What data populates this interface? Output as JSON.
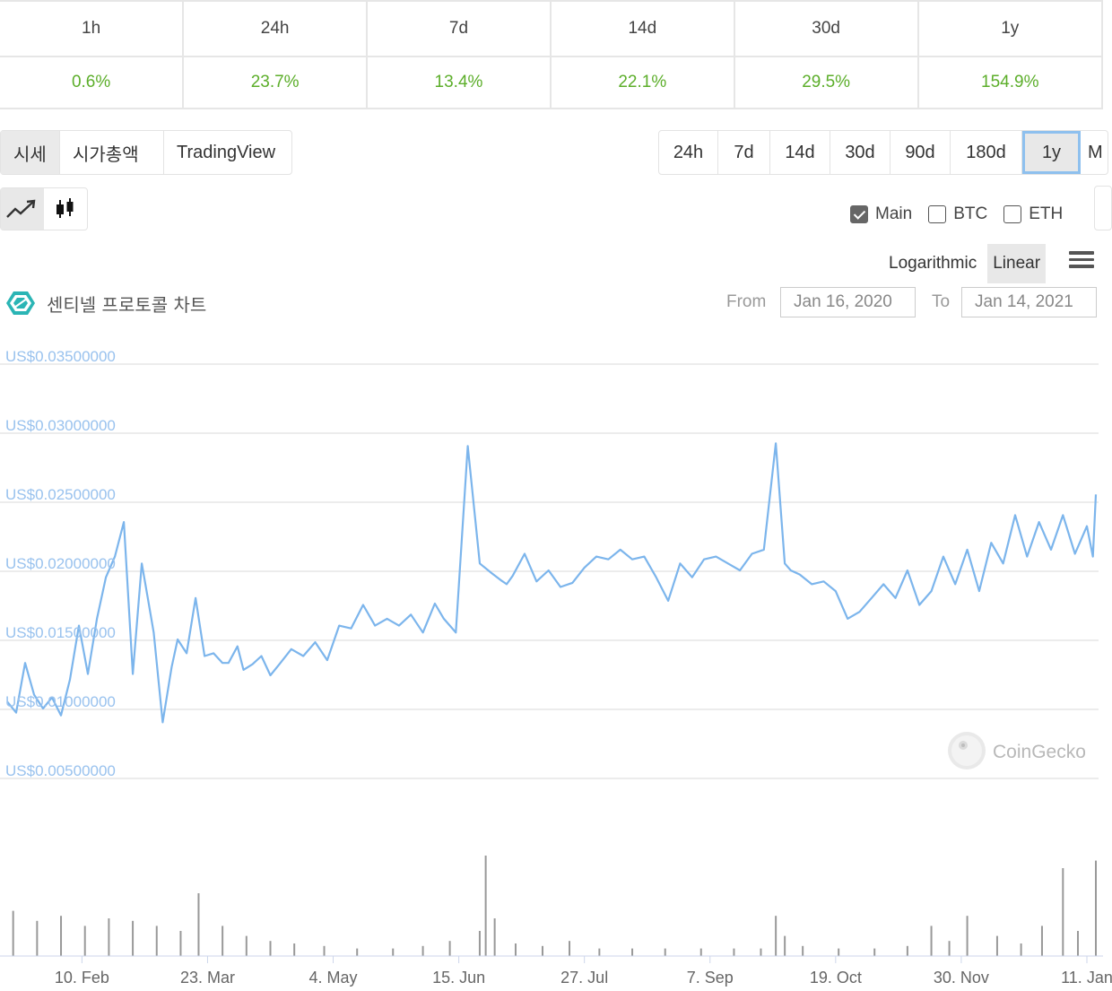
{
  "performance": {
    "periods": [
      "1h",
      "24h",
      "7d",
      "14d",
      "30d",
      "1y"
    ],
    "changes": [
      "0.6%",
      "23.7%",
      "13.4%",
      "22.1%",
      "29.5%",
      "154.9%"
    ]
  },
  "chart_tabs": [
    "시세",
    "시가총액",
    "TradingView"
  ],
  "active_chart_tab": "시세",
  "time_ranges": [
    "24h",
    "7d",
    "14d",
    "30d",
    "90d",
    "180d",
    "1y",
    "M"
  ],
  "active_range": "1y",
  "compare": {
    "main": "Main",
    "btc": "BTC",
    "eth": "ETH"
  },
  "compare_checked": {
    "main": true,
    "btc": false,
    "eth": false
  },
  "scale": {
    "log": "Logarithmic",
    "linear": "Linear",
    "active": "Linear"
  },
  "icons": {
    "line": "line-chart-icon",
    "candle": "candlestick-icon",
    "menu": "menu-icon",
    "coin": "sentinel-protocol-logo-icon",
    "watermark": "coingecko-logo-icon"
  },
  "header": {
    "title": "센티넬 프로토콜 차트",
    "from_label": "From",
    "from_value": "Jan 16, 2020",
    "to_label": "To",
    "to_value": "Jan 14, 2021"
  },
  "watermark": "CoinGecko",
  "colors": {
    "line": "#7cb5ec",
    "up": "#5cae2a",
    "axis_label": "#99c2ee",
    "grid": "#e6e6e6",
    "volume": "#999999"
  },
  "chart_data": {
    "type": "line",
    "title": "센티넬 프로토콜 차트",
    "xlabel": "",
    "ylabel": "",
    "ylim": [
      0.005,
      0.035
    ],
    "y_ticks": [
      {
        "value": 0.035,
        "label": "US$0.03500000"
      },
      {
        "value": 0.03,
        "label": "US$0.03000000"
      },
      {
        "value": 0.025,
        "label": "US$0.02500000"
      },
      {
        "value": 0.02,
        "label": "US$0.02000000"
      },
      {
        "value": 0.015,
        "label": "US$0.01500000"
      },
      {
        "value": 0.01,
        "label": "US$0.01000000"
      },
      {
        "value": 0.005,
        "label": "US$0.00500000"
      }
    ],
    "x_ticks": [
      {
        "date": "2020-02-10",
        "label": "10. Feb"
      },
      {
        "date": "2020-03-23",
        "label": "23. Mar"
      },
      {
        "date": "2020-05-04",
        "label": "4. May"
      },
      {
        "date": "2020-06-15",
        "label": "15. Jun"
      },
      {
        "date": "2020-07-27",
        "label": "27. Jul"
      },
      {
        "date": "2020-09-07",
        "label": "7. Sep"
      },
      {
        "date": "2020-10-19",
        "label": "19. Oct"
      },
      {
        "date": "2020-11-30",
        "label": "30. Nov"
      },
      {
        "date": "2021-01-11",
        "label": "11. Jan"
      }
    ],
    "x_range": [
      "2020-01-16",
      "2021-01-14"
    ],
    "grid": true,
    "legend": "none",
    "series": [
      {
        "x": [
          "2020-01-16",
          "2020-01-19",
          "2020-01-22",
          "2020-01-25",
          "2020-01-28",
          "2020-01-31",
          "2020-02-03",
          "2020-02-06",
          "2020-02-09",
          "2020-02-12",
          "2020-02-15",
          "2020-02-18",
          "2020-02-21",
          "2020-02-24",
          "2020-02-27",
          "2020-03-01",
          "2020-03-03",
          "2020-03-05",
          "2020-03-08",
          "2020-03-11",
          "2020-03-13",
          "2020-03-16",
          "2020-03-19",
          "2020-03-22",
          "2020-03-25",
          "2020-03-28",
          "2020-03-30",
          "2020-04-02",
          "2020-04-04",
          "2020-04-07",
          "2020-04-10",
          "2020-04-13",
          "2020-04-16",
          "2020-04-20",
          "2020-04-24",
          "2020-04-28",
          "2020-05-02",
          "2020-05-06",
          "2020-05-10",
          "2020-05-14",
          "2020-05-18",
          "2020-05-22",
          "2020-05-26",
          "2020-05-30",
          "2020-06-03",
          "2020-06-07",
          "2020-06-10",
          "2020-06-14",
          "2020-06-18",
          "2020-06-22",
          "2020-06-26",
          "2020-06-29",
          "2020-07-01",
          "2020-07-03",
          "2020-07-07",
          "2020-07-11",
          "2020-07-15",
          "2020-07-19",
          "2020-07-23",
          "2020-07-27",
          "2020-07-31",
          "2020-08-04",
          "2020-08-08",
          "2020-08-12",
          "2020-08-16",
          "2020-08-20",
          "2020-08-24",
          "2020-08-28",
          "2020-09-01",
          "2020-09-05",
          "2020-09-09",
          "2020-09-13",
          "2020-09-17",
          "2020-09-21",
          "2020-09-25",
          "2020-09-29",
          "2020-10-02",
          "2020-10-04",
          "2020-10-07",
          "2020-10-11",
          "2020-10-15",
          "2020-10-19",
          "2020-10-23",
          "2020-10-27",
          "2020-10-31",
          "2020-11-04",
          "2020-11-08",
          "2020-11-12",
          "2020-11-16",
          "2020-11-20",
          "2020-11-24",
          "2020-11-28",
          "2020-12-02",
          "2020-12-06",
          "2020-12-10",
          "2020-12-14",
          "2020-12-18",
          "2020-12-22",
          "2020-12-26",
          "2020-12-30",
          "2021-01-03",
          "2021-01-07",
          "2021-01-11",
          "2021-01-13",
          "2021-01-14"
        ],
        "y": [
          0.0105,
          0.0097,
          0.0133,
          0.011,
          0.01,
          0.0108,
          0.0095,
          0.0121,
          0.016,
          0.0125,
          0.0165,
          0.0195,
          0.021,
          0.0235,
          0.0125,
          0.0205,
          0.018,
          0.0155,
          0.009,
          0.013,
          0.015,
          0.014,
          0.018,
          0.0138,
          0.014,
          0.0133,
          0.0133,
          0.0145,
          0.0128,
          0.0132,
          0.0138,
          0.0124,
          0.0132,
          0.0143,
          0.0138,
          0.0148,
          0.0135,
          0.016,
          0.0158,
          0.0175,
          0.016,
          0.0165,
          0.016,
          0.0168,
          0.0155,
          0.0176,
          0.0165,
          0.0155,
          0.029,
          0.0205,
          0.0198,
          0.0193,
          0.019,
          0.0196,
          0.0212,
          0.0192,
          0.02,
          0.0188,
          0.0191,
          0.0202,
          0.021,
          0.0208,
          0.0215,
          0.0208,
          0.021,
          0.0195,
          0.0178,
          0.0205,
          0.0195,
          0.0208,
          0.021,
          0.0205,
          0.02,
          0.0212,
          0.0215,
          0.0292,
          0.0205,
          0.02,
          0.0197,
          0.019,
          0.0192,
          0.0185,
          0.0165,
          0.017,
          0.018,
          0.019,
          0.018,
          0.02,
          0.0175,
          0.0185,
          0.021,
          0.019,
          0.0215,
          0.0185,
          0.022,
          0.0205,
          0.024,
          0.021,
          0.0235,
          0.0215,
          0.024,
          0.0212,
          0.0232,
          0.021,
          0.0255
        ]
      }
    ],
    "volume": {
      "x": [
        "2020-01-18",
        "2020-01-26",
        "2020-02-03",
        "2020-02-11",
        "2020-02-19",
        "2020-02-27",
        "2020-03-06",
        "2020-03-14",
        "2020-03-20",
        "2020-03-28",
        "2020-04-05",
        "2020-04-13",
        "2020-04-21",
        "2020-05-01",
        "2020-05-12",
        "2020-05-24",
        "2020-06-03",
        "2020-06-12",
        "2020-06-22",
        "2020-06-24",
        "2020-06-27",
        "2020-07-04",
        "2020-07-13",
        "2020-07-22",
        "2020-08-01",
        "2020-08-12",
        "2020-08-23",
        "2020-09-04",
        "2020-09-15",
        "2020-09-24",
        "2020-09-29",
        "2020-10-02",
        "2020-10-08",
        "2020-10-20",
        "2020-11-01",
        "2020-11-12",
        "2020-11-20",
        "2020-11-26",
        "2020-12-02",
        "2020-12-12",
        "2020-12-20",
        "2020-12-27",
        "2021-01-03",
        "2021-01-08",
        "2021-01-14"
      ],
      "values": [
        18,
        14,
        16,
        12,
        15,
        14,
        12,
        10,
        25,
        12,
        8,
        6,
        5,
        4,
        3,
        3,
        4,
        6,
        10,
        40,
        15,
        5,
        4,
        6,
        3,
        3,
        3,
        3,
        3,
        3,
        16,
        8,
        4,
        3,
        3,
        4,
        12,
        6,
        16,
        8,
        5,
        12,
        35,
        10,
        38
      ]
    }
  }
}
